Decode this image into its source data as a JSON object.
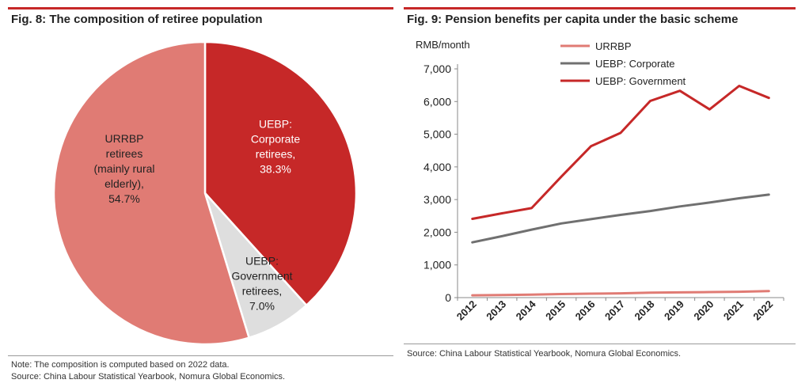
{
  "fig8": {
    "title": "Fig. 8: The composition of retiree population",
    "note": "Note: The composition is computed based on 2022 data.",
    "source": "Source: China Labour Statistical Yearbook, Nomura Global Economics."
  },
  "fig9": {
    "title": "Fig. 9: Pension benefits per capita under the basic scheme",
    "source": "Source: China Labour Statistical Yearbook, Nomura Global Economics."
  },
  "colors": {
    "accent": "#c62828",
    "urrbp": "#e07b74",
    "corporate": "#c62828",
    "government": "#dedede",
    "corporate_line": "#707070",
    "government_line": "#c62828"
  },
  "chart_data": [
    {
      "type": "pie",
      "title": "Fig. 8: The composition of retiree population",
      "slices": [
        {
          "name": "UEBP: Corporate retirees",
          "value": 38.3,
          "label_lines": [
            "UEBP:",
            "Corporate",
            "retirees,",
            "38.3%"
          ],
          "color": "#c62828",
          "text_color": "#ffffff"
        },
        {
          "name": "UEBP: Government retirees",
          "value": 7.0,
          "label_lines": [
            "UEBP:",
            "Government",
            "retirees,",
            "7.0%"
          ],
          "color": "#dedede",
          "text_color": "#222222"
        },
        {
          "name": "URRBP retirees (mainly rural elderly)",
          "value": 54.7,
          "label_lines": [
            "URRBP",
            "retirees",
            "(mainly rural",
            "elderly),",
            "54.7%"
          ],
          "color": "#e07b74",
          "text_color": "#222222"
        }
      ]
    },
    {
      "type": "line",
      "title": "Fig. 9: Pension benefits per capita under the basic scheme",
      "ylabel": "RMB/month",
      "xlabel": "",
      "ylim": [
        0,
        7000
      ],
      "yticks": [
        0,
        1000,
        2000,
        3000,
        4000,
        5000,
        6000,
        7000
      ],
      "ytick_labels": [
        "0",
        "1,000",
        "2,000",
        "3,000",
        "4,000",
        "5,000",
        "6,000",
        "7,000"
      ],
      "categories": [
        "2012",
        "2013",
        "2014",
        "2015",
        "2016",
        "2017",
        "2018",
        "2019",
        "2020",
        "2021",
        "2022"
      ],
      "legend_position": "top-left",
      "series": [
        {
          "name": "URRBP",
          "color": "#e07b74",
          "values": [
            70,
            80,
            90,
            110,
            120,
            130,
            150,
            160,
            170,
            180,
            200
          ]
        },
        {
          "name": "UEBP: Corporate",
          "color": "#707070",
          "values": [
            1690,
            1880,
            2080,
            2270,
            2400,
            2530,
            2650,
            2790,
            2910,
            3040,
            3150
          ]
        },
        {
          "name": "UEBP: Government",
          "color": "#c62828",
          "values": [
            2410,
            2580,
            2740,
            3700,
            4630,
            5040,
            6020,
            6330,
            5760,
            6480,
            6110
          ]
        }
      ]
    }
  ]
}
